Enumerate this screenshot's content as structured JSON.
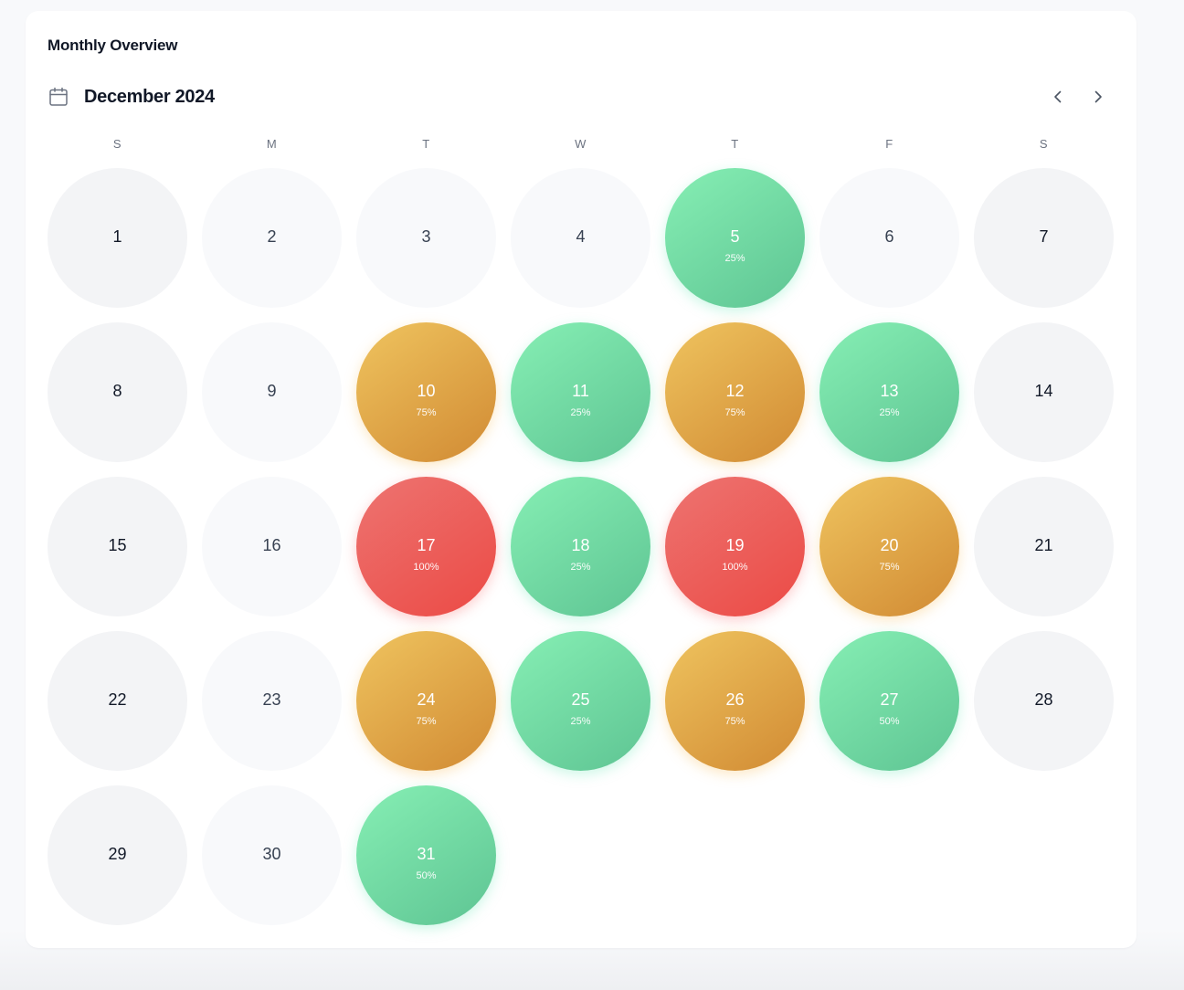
{
  "card": {
    "title": "Monthly Overview"
  },
  "calendar": {
    "month_label": "December 2024",
    "icons": {
      "calendar": "calendar-icon",
      "prev": "chevron-left-icon",
      "next": "chevron-right-icon"
    },
    "weekdays": [
      "S",
      "M",
      "T",
      "W",
      "T",
      "F",
      "S"
    ],
    "colors": {
      "low": "#5ec493",
      "mid": "#d18a33",
      "high": "#ec4a45",
      "empty_weekday": "#f8f9fb",
      "empty_weekend": "#f3f4f6"
    },
    "days": [
      {
        "day": "1",
        "pct": ""
      },
      {
        "day": "2",
        "pct": ""
      },
      {
        "day": "3",
        "pct": ""
      },
      {
        "day": "4",
        "pct": ""
      },
      {
        "day": "5",
        "pct": "25%"
      },
      {
        "day": "6",
        "pct": ""
      },
      {
        "day": "7",
        "pct": ""
      },
      {
        "day": "8",
        "pct": ""
      },
      {
        "day": "9",
        "pct": ""
      },
      {
        "day": "10",
        "pct": "75%"
      },
      {
        "day": "11",
        "pct": "25%"
      },
      {
        "day": "12",
        "pct": "75%"
      },
      {
        "day": "13",
        "pct": "25%"
      },
      {
        "day": "14",
        "pct": ""
      },
      {
        "day": "15",
        "pct": ""
      },
      {
        "day": "16",
        "pct": ""
      },
      {
        "day": "17",
        "pct": "100%"
      },
      {
        "day": "18",
        "pct": "25%"
      },
      {
        "day": "19",
        "pct": "100%"
      },
      {
        "day": "20",
        "pct": "75%"
      },
      {
        "day": "21",
        "pct": ""
      },
      {
        "day": "22",
        "pct": ""
      },
      {
        "day": "23",
        "pct": ""
      },
      {
        "day": "24",
        "pct": "75%"
      },
      {
        "day": "25",
        "pct": "25%"
      },
      {
        "day": "26",
        "pct": "75%"
      },
      {
        "day": "27",
        "pct": "50%"
      },
      {
        "day": "28",
        "pct": ""
      },
      {
        "day": "29",
        "pct": ""
      },
      {
        "day": "30",
        "pct": ""
      },
      {
        "day": "31",
        "pct": "50%"
      }
    ]
  }
}
